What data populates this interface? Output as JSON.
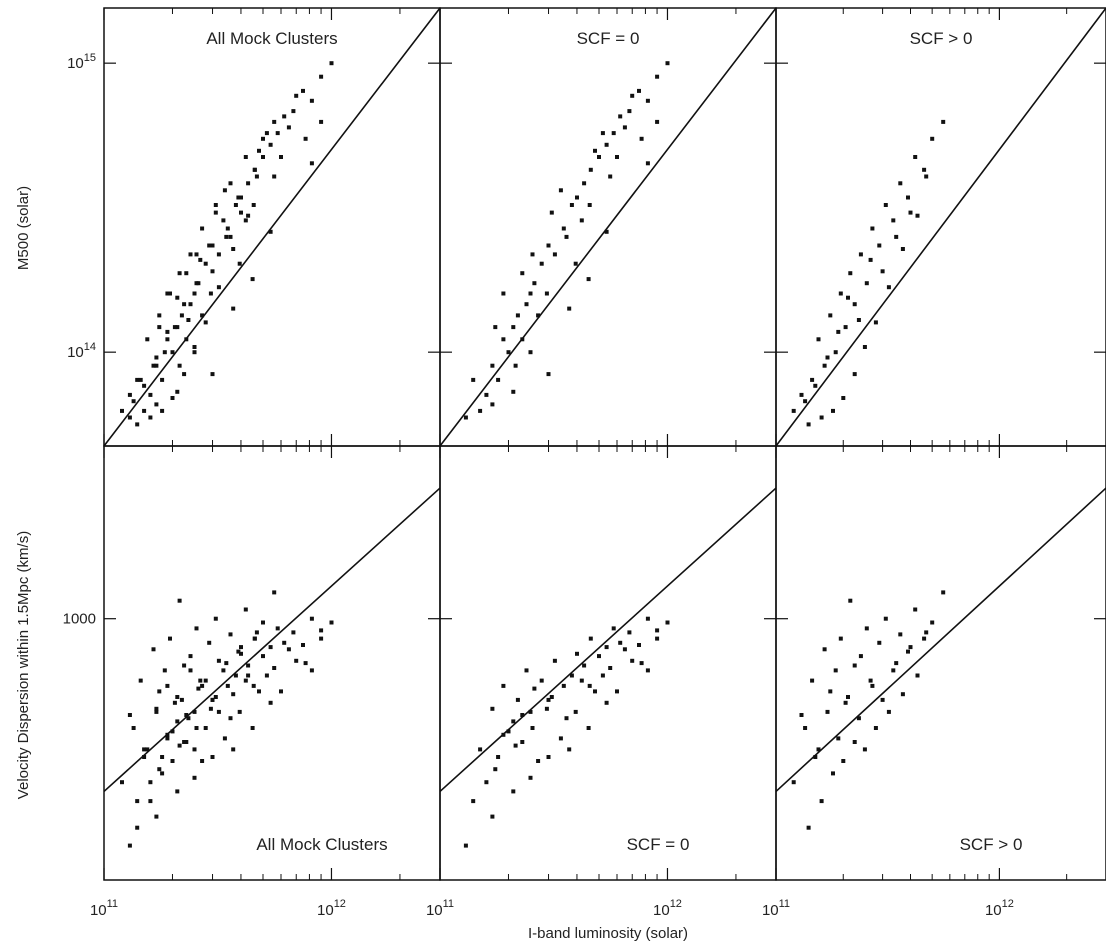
{
  "chart_data": {
    "type": "scatter",
    "grid": false,
    "shared_xlabel": "I-band luminosity (solar)",
    "rows": [
      {
        "ylabel": "M500 (solar)",
        "yscale": "log",
        "ylim": [
          7000000000000,
          37000000000000
        ],
        "yticks": [
          {
            "value": 10000000000000,
            "label": "10",
            "sup": "14"
          },
          {
            "value": 30000000000000,
            "label": "10",
            "sup": "15"
          }
        ]
      },
      {
        "ylabel": "Velocity Dispersion within 1.5Mpc (km/s)",
        "yscale": "log",
        "ylim": [
          250,
          2500
        ],
        "yticks": [
          {
            "value": 1000,
            "label": "1000",
            "sup": ""
          }
        ]
      }
    ],
    "xscale": "log",
    "xlim": [
      100000000000,
      3000000000000
    ],
    "xticks": [
      {
        "value": 100000000000,
        "label": "10",
        "sup": "11"
      },
      {
        "value": 1000000000000,
        "label": "10",
        "sup": "12"
      }
    ],
    "panels": [
      {
        "row": 0,
        "col": 0,
        "title": "All Mock Clusters",
        "subset": "all",
        "fit": {
          "x": [
            100000000000,
            3000000000000
          ],
          "y": [
            7000000000000,
            37000000000000
          ]
        }
      },
      {
        "row": 0,
        "col": 1,
        "title": "SCF = 0",
        "subset": "scf0",
        "fit": {
          "x": [
            100000000000,
            3000000000000
          ],
          "y": [
            7000000000000,
            37000000000000
          ]
        }
      },
      {
        "row": 0,
        "col": 2,
        "title": "SCF > 0",
        "subset": "scfpos",
        "fit": {
          "x": [
            100000000000,
            3000000000000
          ],
          "y": [
            7000000000000,
            37000000000000
          ]
        }
      },
      {
        "row": 1,
        "col": 0,
        "title": "All Mock Clusters",
        "subset": "all",
        "fit": {
          "x": [
            100000000000,
            3000000000000
          ],
          "y": [
            400,
            2000
          ]
        }
      },
      {
        "row": 1,
        "col": 1,
        "title": "SCF = 0",
        "subset": "scf0",
        "fit": {
          "x": [
            100000000000,
            3000000000000
          ],
          "y": [
            400,
            2000
          ]
        }
      },
      {
        "row": 1,
        "col": 2,
        "title": "SCF > 0",
        "subset": "scfpos",
        "fit": {
          "x": [
            100000000000,
            3000000000000
          ],
          "y": [
            400,
            2000
          ]
        }
      }
    ],
    "points": {
      "scf0": {
        "x": [
          150000000000,
          170000000000,
          180000000000,
          190000000000,
          200000000000,
          210000000000,
          220000000000,
          230000000000,
          240000000000,
          250000000000,
          260000000000,
          280000000000,
          300000000000,
          320000000000,
          350000000000,
          380000000000,
          400000000000,
          430000000000,
          460000000000,
          500000000000,
          540000000000,
          580000000000,
          620000000000,
          680000000000,
          750000000000,
          820000000000,
          900000000000,
          1000000000000,
          160000000000,
          190000000000,
          230000000000,
          270000000000,
          310000000000,
          360000000000,
          420000000000,
          480000000000,
          560000000000,
          650000000000,
          770000000000,
          900000000000,
          140000000000,
          175000000000,
          215000000000,
          255000000000,
          295000000000,
          340000000000,
          395000000000,
          455000000000,
          520000000000,
          600000000000,
          700000000000,
          820000000000,
          130000000000,
          170000000000,
          210000000000,
          250000000000,
          300000000000,
          370000000000,
          450000000000,
          540000000000
        ],
        "mass": [
          8000000000000,
          9500000000000,
          9000000000000,
          10500000000000,
          10000000000000,
          11000000000000,
          11500000000000,
          10500000000000,
          12000000000000,
          12500000000000,
          13000000000000,
          14000000000000,
          15000000000000,
          14500000000000,
          16000000000000,
          17500000000000,
          18000000000000,
          19000000000000,
          20000000000000,
          21000000000000,
          22000000000000,
          23000000000000,
          24500000000000,
          25000000000000,
          27000000000000,
          26000000000000,
          28500000000000,
          30000000000000,
          8500000000000,
          12500000000000,
          13500000000000,
          11500000000000,
          17000000000000,
          15500000000000,
          16500000000000,
          21500000000000,
          19500000000000,
          23500000000000,
          22500000000000,
          24000000000000,
          9000000000000,
          11000000000000,
          9500000000000,
          14500000000000,
          12500000000000,
          18500000000000,
          14000000000000,
          17500000000000,
          23000000000000,
          21000000000000,
          26500000000000,
          20500000000000,
          7800000000000,
          8200000000000,
          8600000000000,
          10000000000000,
          9200000000000,
          11800000000000,
          13200000000000,
          15800000000000
        ],
        "sigma": [
          500,
          620,
          480,
          700,
          550,
          580,
          650,
          520,
          760,
          610,
          690,
          720,
          650,
          800,
          700,
          740,
          830,
          780,
          900,
          820,
          860,
          950,
          880,
          930,
          870,
          1000,
          940,
          980,
          420,
          540,
          600,
          470,
          660,
          590,
          720,
          680,
          770,
          850,
          790,
          900,
          380,
          450,
          510,
          560,
          620,
          530,
          610,
          700,
          740,
          680,
          800,
          760,
          300,
          350,
          400,
          430,
          480,
          500,
          560,
          640
        ]
      },
      "scfpos": {
        "x": [
          130000000000,
          145000000000,
          155000000000,
          165000000000,
          175000000000,
          185000000000,
          195000000000,
          205000000000,
          215000000000,
          225000000000,
          240000000000,
          255000000000,
          270000000000,
          290000000000,
          310000000000,
          335000000000,
          360000000000,
          390000000000,
          420000000000,
          460000000000,
          500000000000,
          560000000000,
          120000000000,
          135000000000,
          150000000000,
          170000000000,
          190000000000,
          210000000000,
          235000000000,
          265000000000,
          300000000000,
          345000000000,
          400000000000,
          470000000000,
          140000000000,
          160000000000,
          180000000000,
          200000000000,
          225000000000,
          250000000000,
          280000000000,
          320000000000,
          370000000000,
          430000000000
        ],
        "mass": [
          8500000000000,
          9000000000000,
          10500000000000,
          9500000000000,
          11500000000000,
          10000000000000,
          12500000000000,
          11000000000000,
          13500000000000,
          12000000000000,
          14500000000000,
          13000000000000,
          16000000000000,
          15000000000000,
          17500000000000,
          16500000000000,
          19000000000000,
          18000000000000,
          21000000000000,
          20000000000000,
          22500000000000,
          24000000000000,
          8000000000000,
          8300000000000,
          8800000000000,
          9800000000000,
          10800000000000,
          12300000000000,
          11300000000000,
          14200000000000,
          13600000000000,
          15500000000000,
          17000000000000,
          19500000000000,
          7600000000000,
          7800000000000,
          8000000000000,
          8400000000000,
          9200000000000,
          10200000000000,
          11200000000000,
          12800000000000,
          14800000000000,
          16800000000000
        ],
        "sigma": [
          600,
          720,
          500,
          850,
          680,
          760,
          900,
          640,
          1100,
          780,
          820,
          950,
          700,
          880,
          1000,
          760,
          920,
          840,
          1050,
          900,
          980,
          1150,
          420,
          560,
          480,
          610,
          530,
          660,
          590,
          720,
          650,
          790,
          860,
          930,
          330,
          380,
          440,
          470,
          520,
          500,
          560,
          610,
          670,
          740
        ]
      }
    }
  }
}
